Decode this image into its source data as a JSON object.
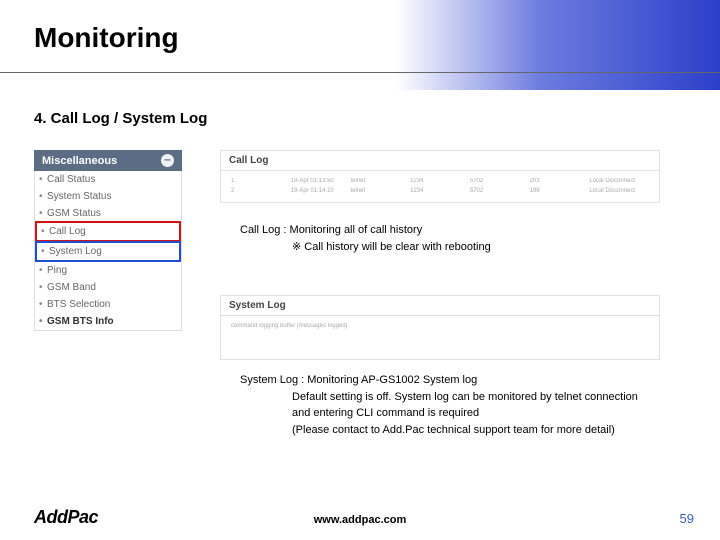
{
  "title": "Monitoring",
  "section_heading": "4. Call Log / System Log",
  "sidebar": {
    "header": "Miscellaneous",
    "items": [
      {
        "label": "Call Status",
        "highlight": null
      },
      {
        "label": "System Status",
        "highlight": null
      },
      {
        "label": "GSM Status",
        "highlight": null
      },
      {
        "label": "Call Log",
        "highlight": "red"
      },
      {
        "label": "System Log",
        "highlight": "blue"
      },
      {
        "label": "Ping",
        "highlight": null
      },
      {
        "label": "GSM Band",
        "highlight": null
      },
      {
        "label": "BTS Selection",
        "highlight": null
      },
      {
        "label": "GSM BTS Info",
        "highlight": null,
        "last": true
      }
    ]
  },
  "call_panel": {
    "title": "Call Log",
    "rows": [
      [
        "1",
        "19-Apr 01:13:50",
        "telnet",
        "1234",
        "5702",
        "203",
        "Local Disconnect"
      ],
      [
        "2",
        "19-Apr 01:14:10",
        "telnet",
        "1234",
        "5702",
        "198",
        "Local Disconnect"
      ]
    ]
  },
  "call_caption": {
    "line1": "Call Log : Monitoring all of call history",
    "line2": "※ Call history will be clear with rebooting"
  },
  "sys_panel": {
    "title": "System Log",
    "body": "command   logging buffer   [messages   logged]"
  },
  "sys_caption": {
    "line1": "System Log : Monitoring AP-GS1002 System log",
    "line2": "Default setting is off. System log can be monitored by telnet connection",
    "line3": "and entering CLI command is required",
    "line4": "(Please contact to Add.Pac technical support team for more detail)"
  },
  "footer": {
    "brand": "AddPac",
    "url": "www.addpac.com",
    "page": "59"
  },
  "colors": {
    "gradient_start": "#ffffff",
    "gradient_end": "#2b3fc9",
    "sidebar_header_bg": "#5b6d84",
    "highlight_red": "#d11313",
    "highlight_blue": "#1b4fd4",
    "page_num": "#3a5ec0"
  }
}
